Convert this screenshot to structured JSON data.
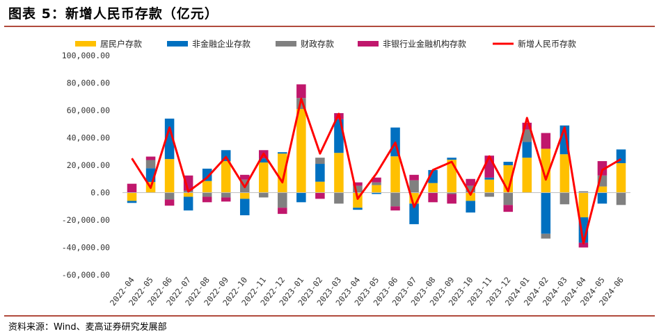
{
  "figure": {
    "title": "图表 5：新增人民币存款（亿元）",
    "source": "资料来源：Wind、麦高证券研究发展部"
  },
  "chart_data": {
    "type": "bar",
    "stacked": true,
    "categories": [
      "2022-04",
      "2022-05",
      "2022-06",
      "2022-07",
      "2022-08",
      "2022-09",
      "2022-10",
      "2022-11",
      "2022-12",
      "2023-01",
      "2023-02",
      "2023-03",
      "2023-04",
      "2023-05",
      "2023-06",
      "2023-07",
      "2023-08",
      "2023-09",
      "2023-10",
      "2023-11",
      "2023-12",
      "2024-01",
      "2024-02",
      "2024-03",
      "2024-04",
      "2024-05",
      "2024-06"
    ],
    "ylim": [
      -60000,
      100000
    ],
    "yticks": [
      -60000,
      -40000,
      -20000,
      0,
      20000,
      40000,
      60000,
      80000,
      100000
    ],
    "ytick_labels": [
      "-60,000.00",
      "-40,000.00",
      "-20,000.00",
      "0.00",
      "20,000.00",
      "40,000.00",
      "60,000.00",
      "80,000.00",
      "100,000.00"
    ],
    "legend_position": "top",
    "series": [
      {
        "name": "居民户存款",
        "kind": "bar",
        "color": "#FFC000",
        "values": [
          -6000,
          7800,
          24500,
          -3000,
          8500,
          23000,
          -4500,
          22000,
          28500,
          61000,
          8000,
          29000,
          -11000,
          5500,
          26500,
          -8000,
          7000,
          24000,
          -6000,
          9500,
          20000,
          25500,
          32000,
          28000,
          -18000,
          4500,
          21500
        ]
      },
      {
        "name": "非金融企业存款",
        "kind": "bar",
        "color": "#0070C0",
        "values": [
          -1500,
          10000,
          29500,
          -10000,
          9000,
          8000,
          -12000,
          3000,
          1000,
          -7000,
          13000,
          24500,
          -1500,
          -1000,
          21000,
          -15000,
          9500,
          1500,
          -8500,
          1500,
          2500,
          11500,
          -30000,
          21000,
          -18500,
          -8000,
          10000
        ]
      },
      {
        "name": "财政存款",
        "kind": "bar",
        "color": "#808080",
        "values": [
          0,
          6000,
          -5000,
          1500,
          -3000,
          -3500,
          9500,
          -3500,
          -11000,
          8000,
          4500,
          -8000,
          5000,
          2000,
          -10000,
          9000,
          0,
          -1000,
          5000,
          -3000,
          -9000,
          9000,
          -3500,
          -8500,
          1000,
          8000,
          -9000
        ]
      },
      {
        "name": "非银行业金融机构存款",
        "kind": "bar",
        "color": "#C0176C",
        "values": [
          6500,
          2500,
          -4500,
          11000,
          -4000,
          -3000,
          3500,
          6000,
          -4500,
          10000,
          -4500,
          4500,
          2500,
          3500,
          -3000,
          4000,
          -7000,
          -7000,
          5000,
          16000,
          -5000,
          5000,
          11500,
          0,
          -3500,
          10500,
          0
        ]
      },
      {
        "name": "新增人民币存款",
        "kind": "line",
        "color": "#FF0000",
        "values": [
          25000,
          3500,
          47500,
          800,
          11000,
          26000,
          4000,
          28500,
          7500,
          68500,
          28500,
          57500,
          -4500,
          14000,
          36500,
          -10500,
          16500,
          22500,
          -1500,
          26500,
          1000,
          54500,
          9500,
          47500,
          -37000,
          16500,
          24500
        ]
      }
    ]
  }
}
